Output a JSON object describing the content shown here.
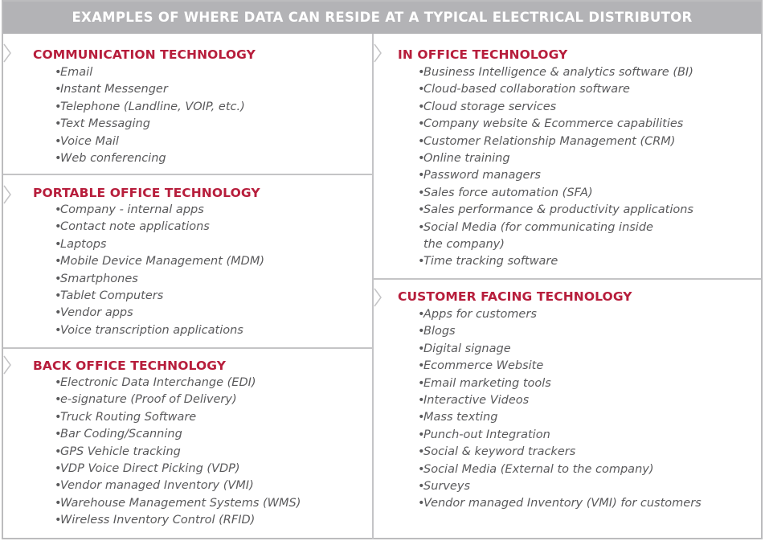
{
  "header": {
    "title": "EXAMPLES OF WHERE DATA CAN RESIDE AT A TYPICAL ELECTRICAL DISTRIBUTOR"
  },
  "colors": {
    "header_bg": "#b3b3b6",
    "section_title": "#b71e3c",
    "item_text": "#5a5a5c",
    "divider": "#c4c4c6"
  },
  "bullet": "•",
  "sections": {
    "communication": {
      "title": "COMMUNICATION TECHNOLOGY",
      "items": [
        "Email",
        "Instant Messenger",
        "Telephone (Landline, VOIP, etc.)",
        "Text Messaging",
        "Voice Mail",
        "Web conferencing"
      ]
    },
    "portable": {
      "title": "PORTABLE OFFICE TECHNOLOGY",
      "items": [
        "Company - internal apps",
        "Contact note applications",
        "Laptops",
        "Mobile Device Management (MDM)",
        "Smartphones",
        "Tablet Computers",
        "Vendor apps",
        "Voice transcription applications"
      ]
    },
    "back_office": {
      "title": "BACK OFFICE TECHNOLOGY",
      "items": [
        "Electronic Data Interchange (EDI)",
        "e-signature (Proof of Delivery)",
        "Truck Routing Software",
        "Bar Coding/Scanning",
        "GPS Vehicle tracking",
        "VDP Voice Direct Picking (VDP)",
        "Vendor managed Inventory (VMI)",
        "Warehouse Management Systems (WMS)",
        "Wireless Inventory Control (RFID)"
      ]
    },
    "in_office": {
      "title": "IN OFFICE TECHNOLOGY",
      "items": [
        "Business Intelligence & analytics software (BI)",
        "Cloud-based collaboration software",
        "Cloud storage services",
        "Company website & Ecommerce capabilities",
        "Customer Relationship Management (CRM)",
        "Online training",
        "Password managers",
        "Sales force automation (SFA)",
        "Sales performance & productivity applications",
        "Social Media (for communicating inside",
        "the company)",
        "Time tracking software"
      ]
    },
    "customer_facing": {
      "title": "CUSTOMER FACING TECHNOLOGY",
      "items": [
        "Apps for customers",
        "Blogs",
        "Digital signage",
        "Ecommerce Website",
        "Email marketing tools",
        "Interactive Videos",
        "Mass texting",
        "Punch-out Integration",
        "Social & keyword trackers",
        "Social Media (External to the company)",
        "Surveys",
        "Vendor managed Inventory (VMI) for customers"
      ]
    }
  }
}
